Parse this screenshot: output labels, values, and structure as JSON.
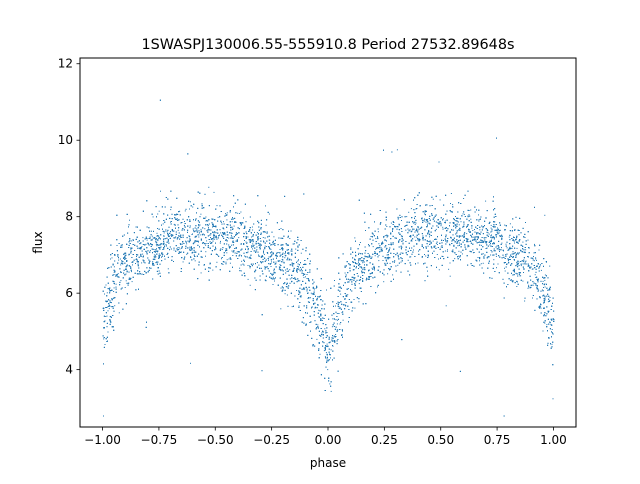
{
  "chart_data": {
    "type": "scatter",
    "title": "1SWASPJ130006.55-555910.8 Period 27532.89648s",
    "xlabel": "phase",
    "ylabel": "flux",
    "xlim": [
      -1.1,
      1.1
    ],
    "ylim": [
      2.5,
      12.15
    ],
    "x_ticks": [
      -1.0,
      -0.75,
      -0.5,
      -0.25,
      0.0,
      0.25,
      0.5,
      0.75,
      1.0
    ],
    "x_tick_labels": [
      "−1.00",
      "−0.75",
      "−0.50",
      "−0.25",
      "0.00",
      "0.25",
      "0.50",
      "0.75",
      "1.00"
    ],
    "y_ticks": [
      4,
      6,
      8,
      10,
      12
    ],
    "y_tick_labels": [
      "4",
      "6",
      "8",
      "10",
      "12"
    ],
    "grid": false,
    "legend": false,
    "marker_color": "#1f77b4",
    "series": [
      {
        "x_range": [
          -1.0,
          1.0
        ],
        "description_of_trend": "folded light curve, flux ~7-8 at most phases with eclipse dips to ~4-5 near phase -1.0, 0.0 and 1.0",
        "profile": {
          "phase": [
            -1.0,
            -0.95,
            -0.9,
            -0.85,
            -0.8,
            -0.75,
            -0.7,
            -0.6,
            -0.5,
            -0.4,
            -0.3,
            -0.25,
            -0.2,
            -0.15,
            -0.1,
            -0.05,
            0.0,
            0.05,
            0.1,
            0.15,
            0.2,
            0.25,
            0.3,
            0.4,
            0.5,
            0.6,
            0.7,
            0.75,
            0.8,
            0.85,
            0.9,
            0.95,
            1.0
          ],
          "flux": [
            5.2,
            6.3,
            6.8,
            7.0,
            7.2,
            7.35,
            7.5,
            7.6,
            7.5,
            7.4,
            7.2,
            7.0,
            6.9,
            6.6,
            6.2,
            5.5,
            4.6,
            5.5,
            6.3,
            6.8,
            7.0,
            7.2,
            7.4,
            7.55,
            7.6,
            7.55,
            7.4,
            7.3,
            7.1,
            6.9,
            6.6,
            6.0,
            5.2
          ]
        },
        "n_points": 9000
      }
    ]
  }
}
